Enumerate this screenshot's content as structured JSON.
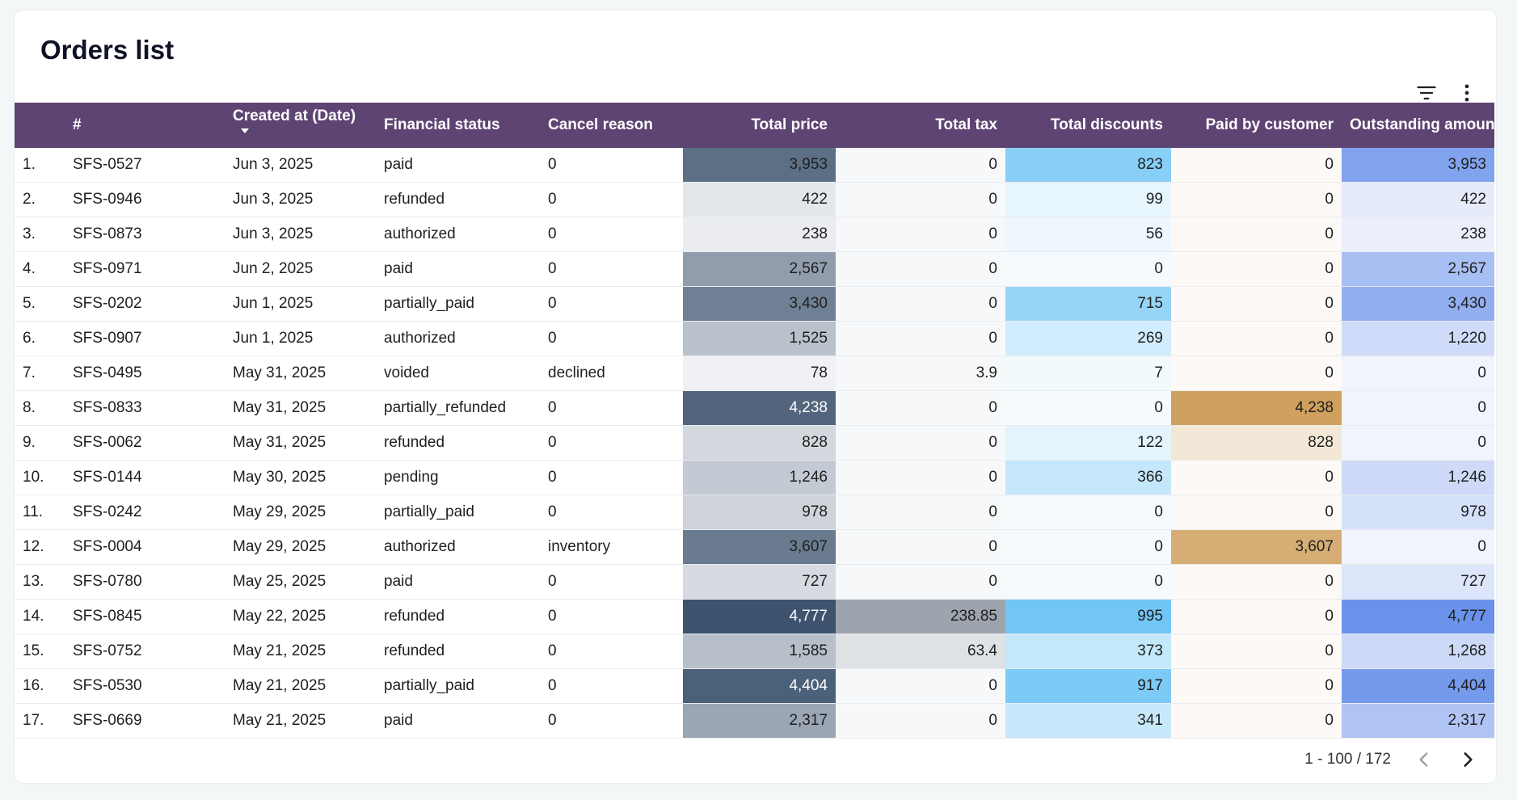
{
  "title": "Orders list",
  "toolbar": {
    "filter_icon": "filter-icon",
    "more_icon": "more-vert-icon"
  },
  "columns": [
    {
      "key": "idx",
      "label": "",
      "align": "left"
    },
    {
      "key": "id",
      "label": "#",
      "align": "left"
    },
    {
      "key": "date",
      "label": "Created at (Date)",
      "align": "left",
      "sorted": "desc"
    },
    {
      "key": "status",
      "label": "Financial status",
      "align": "left"
    },
    {
      "key": "cancel",
      "label": "Cancel reason",
      "align": "left"
    },
    {
      "key": "price",
      "label": "Total price",
      "align": "right"
    },
    {
      "key": "tax",
      "label": "Total tax",
      "align": "right"
    },
    {
      "key": "discounts",
      "label": "Total discounts",
      "align": "right"
    },
    {
      "key": "paid",
      "label": "Paid by customer",
      "align": "right"
    },
    {
      "key": "outstanding",
      "label": "Outstanding amount",
      "align": "right"
    }
  ],
  "heatmap_colors": {
    "price": {
      "from": "#f3f4f6",
      "to": "#3d536e",
      "max": 4777
    },
    "tax": {
      "from": "#f7f8f9",
      "to": "#9ea4ad",
      "max": 238.85
    },
    "discounts": {
      "from": "#f4fafe",
      "to": "#72c6f5",
      "max": 995
    },
    "paid": {
      "from": "#fcf9f6",
      "to": "#cfa05e",
      "max": 4238
    },
    "outstanding": {
      "from": "#f1f4fc",
      "to": "#6a92eb",
      "max": 4777
    }
  },
  "rows": [
    {
      "idx": "1.",
      "id": "SFS-0527",
      "date": "Jun 3, 2025",
      "status": "paid",
      "cancel": "0",
      "price": "3,953",
      "tax": "0",
      "discounts": "823",
      "paid": "0",
      "outstanding": "3,953"
    },
    {
      "idx": "2.",
      "id": "SFS-0946",
      "date": "Jun 3, 2025",
      "status": "refunded",
      "cancel": "0",
      "price": "422",
      "tax": "0",
      "discounts": "99",
      "paid": "0",
      "outstanding": "422"
    },
    {
      "idx": "3.",
      "id": "SFS-0873",
      "date": "Jun 3, 2025",
      "status": "authorized",
      "cancel": "0",
      "price": "238",
      "tax": "0",
      "discounts": "56",
      "paid": "0",
      "outstanding": "238"
    },
    {
      "idx": "4.",
      "id": "SFS-0971",
      "date": "Jun 2, 2025",
      "status": "paid",
      "cancel": "0",
      "price": "2,567",
      "tax": "0",
      "discounts": "0",
      "paid": "0",
      "outstanding": "2,567"
    },
    {
      "idx": "5.",
      "id": "SFS-0202",
      "date": "Jun 1, 2025",
      "status": "partially_paid",
      "cancel": "0",
      "price": "3,430",
      "tax": "0",
      "discounts": "715",
      "paid": "0",
      "outstanding": "3,430"
    },
    {
      "idx": "6.",
      "id": "SFS-0907",
      "date": "Jun 1, 2025",
      "status": "authorized",
      "cancel": "0",
      "price": "1,525",
      "tax": "0",
      "discounts": "269",
      "paid": "0",
      "outstanding": "1,220"
    },
    {
      "idx": "7.",
      "id": "SFS-0495",
      "date": "May 31, 2025",
      "status": "voided",
      "cancel": "declined",
      "price": "78",
      "tax": "3.9",
      "discounts": "7",
      "paid": "0",
      "outstanding": "0"
    },
    {
      "idx": "8.",
      "id": "SFS-0833",
      "date": "May 31, 2025",
      "status": "partially_refunded",
      "cancel": "0",
      "price": "4,238",
      "tax": "0",
      "discounts": "0",
      "paid": "4,238",
      "outstanding": "0"
    },
    {
      "idx": "9.",
      "id": "SFS-0062",
      "date": "May 31, 2025",
      "status": "refunded",
      "cancel": "0",
      "price": "828",
      "tax": "0",
      "discounts": "122",
      "paid": "828",
      "outstanding": "0"
    },
    {
      "idx": "10.",
      "id": "SFS-0144",
      "date": "May 30, 2025",
      "status": "pending",
      "cancel": "0",
      "price": "1,246",
      "tax": "0",
      "discounts": "366",
      "paid": "0",
      "outstanding": "1,246"
    },
    {
      "idx": "11.",
      "id": "SFS-0242",
      "date": "May 29, 2025",
      "status": "partially_paid",
      "cancel": "0",
      "price": "978",
      "tax": "0",
      "discounts": "0",
      "paid": "0",
      "outstanding": "978"
    },
    {
      "idx": "12.",
      "id": "SFS-0004",
      "date": "May 29, 2025",
      "status": "authorized",
      "cancel": "inventory",
      "price": "3,607",
      "tax": "0",
      "discounts": "0",
      "paid": "3,607",
      "outstanding": "0"
    },
    {
      "idx": "13.",
      "id": "SFS-0780",
      "date": "May 25, 2025",
      "status": "paid",
      "cancel": "0",
      "price": "727",
      "tax": "0",
      "discounts": "0",
      "paid": "0",
      "outstanding": "727"
    },
    {
      "idx": "14.",
      "id": "SFS-0845",
      "date": "May 22, 2025",
      "status": "refunded",
      "cancel": "0",
      "price": "4,777",
      "tax": "238.85",
      "discounts": "995",
      "paid": "0",
      "outstanding": "4,777"
    },
    {
      "idx": "15.",
      "id": "SFS-0752",
      "date": "May 21, 2025",
      "status": "refunded",
      "cancel": "0",
      "price": "1,585",
      "tax": "63.4",
      "discounts": "373",
      "paid": "0",
      "outstanding": "1,268"
    },
    {
      "idx": "16.",
      "id": "SFS-0530",
      "date": "May 21, 2025",
      "status": "partially_paid",
      "cancel": "0",
      "price": "4,404",
      "tax": "0",
      "discounts": "917",
      "paid": "0",
      "outstanding": "4,404"
    },
    {
      "idx": "17.",
      "id": "SFS-0669",
      "date": "May 21, 2025",
      "status": "paid",
      "cancel": "0",
      "price": "2,317",
      "tax": "0",
      "discounts": "341",
      "paid": "0",
      "outstanding": "2,317"
    }
  ],
  "pagination": {
    "range": "1 - 100 / 172",
    "prev_icon": "chevron-left-icon",
    "next_icon": "chevron-right-icon"
  }
}
